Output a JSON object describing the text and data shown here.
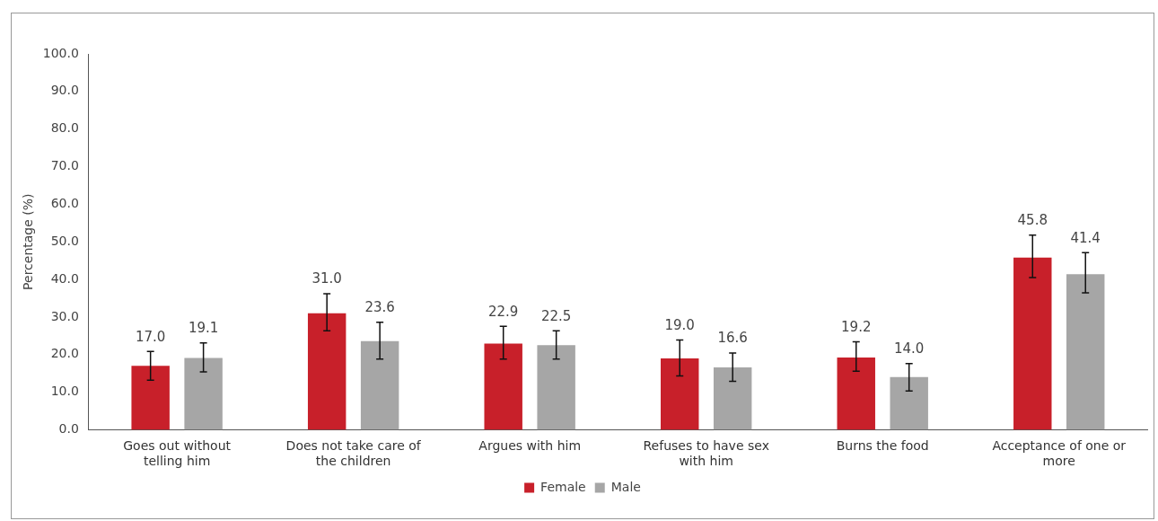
{
  "chart_data": {
    "type": "bar",
    "ylabel": "Percentage (%)",
    "categories": [
      "Goes out without telling him",
      "Does not take care of the children",
      "Argues with him",
      "Refuses to have sex with him",
      "Burns the food",
      "Acceptance of one or more"
    ],
    "series": [
      {
        "name": "Female",
        "color": "#c8202a",
        "values": [
          17.0,
          31.0,
          22.9,
          19.0,
          19.2,
          45.8
        ],
        "value_labels": [
          "17.0",
          "31.0",
          "22.9",
          "19.0",
          "19.2",
          "45.8"
        ],
        "errors": [
          [
            13.2,
            20.8
          ],
          [
            26.3,
            36.2
          ],
          [
            18.8,
            27.5
          ],
          [
            14.3,
            23.9
          ],
          [
            15.6,
            23.4
          ],
          [
            40.5,
            51.8
          ]
        ]
      },
      {
        "name": "Male",
        "color": "#a6a6a6",
        "values": [
          19.1,
          23.6,
          22.5,
          16.6,
          14.0,
          41.4
        ],
        "value_labels": [
          "19.1",
          "23.6",
          "22.5",
          "16.6",
          "14.0",
          "41.4"
        ],
        "errors": [
          [
            15.4,
            23.1
          ],
          [
            18.8,
            28.6
          ],
          [
            18.8,
            26.3
          ],
          [
            12.9,
            20.4
          ],
          [
            10.3,
            17.6
          ],
          [
            36.4,
            47.1
          ]
        ]
      }
    ],
    "ylim": [
      0,
      100
    ],
    "yticks": [
      {
        "value": 0,
        "label": "0.0"
      },
      {
        "value": 10,
        "label": "10.0"
      },
      {
        "value": 20,
        "label": "20.0"
      },
      {
        "value": 30,
        "label": "30.0"
      },
      {
        "value": 40,
        "label": "40.0"
      },
      {
        "value": 50,
        "label": "50.0"
      },
      {
        "value": 60,
        "label": "60.0"
      },
      {
        "value": 70,
        "label": "70.0"
      },
      {
        "value": 80,
        "label": "80.0"
      },
      {
        "value": 90,
        "label": "90.0"
      },
      {
        "value": 100,
        "label": "100.0"
      }
    ],
    "grid": false,
    "legend": "bottom"
  }
}
